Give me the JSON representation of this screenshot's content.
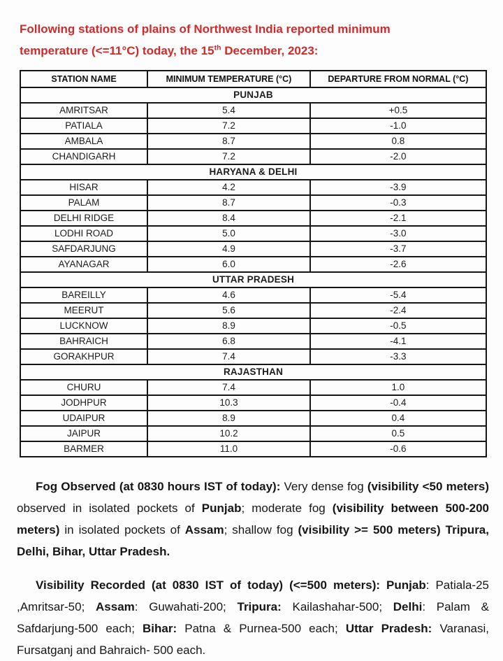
{
  "colors": {
    "heading_red": "#d02a2a",
    "section_blue": "#2e75b6",
    "highlight_red": "#c63434",
    "text_black": "#1a1a1a",
    "border_black": "#161616",
    "page_bg": "#fdfdfd"
  },
  "heading": {
    "line1": "Following stations of plains of Northwest India reported minimum",
    "line2_before_sup": "temperature (<=11°C) today, the 15",
    "sup": "th",
    "line2_after_sup": " December, 2023:"
  },
  "table": {
    "columns": [
      "STATION NAME",
      "MINIMUM TEMPERATURE (°C)",
      "DEPARTURE FROM NORMAL (°C)"
    ],
    "sections": [
      {
        "name": "PUNJAB",
        "rows": [
          {
            "station": "AMRITSAR",
            "min_temp": "5.4",
            "departure": "+0.5",
            "highlight": false
          },
          {
            "station": "PATIALA",
            "min_temp": "7.2",
            "departure": "-1.0",
            "highlight": false
          },
          {
            "station": "AMBALA",
            "min_temp": "8.7",
            "departure": "0.8",
            "highlight": false
          },
          {
            "station": "CHANDIGARH",
            "min_temp": "7.2",
            "departure": "-2.0",
            "highlight": false
          }
        ]
      },
      {
        "name": "HARYANA & DELHI",
        "rows": [
          {
            "station": "HISAR",
            "min_temp": "4.2",
            "departure": "-3.9",
            "highlight": true
          },
          {
            "station": "PALAM",
            "min_temp": "8.7",
            "departure": "-0.3",
            "highlight": false
          },
          {
            "station": "DELHI RIDGE",
            "min_temp": "8.4",
            "departure": "-2.1",
            "highlight": false
          },
          {
            "station": "LODHI ROAD",
            "min_temp": "5.0",
            "departure": "-3.0",
            "highlight": false
          },
          {
            "station": "SAFDARJUNG",
            "min_temp": "4.9",
            "departure": "-3.7",
            "highlight": false
          },
          {
            "station": "AYANAGAR",
            "min_temp": "6.0",
            "departure": "-2.6",
            "highlight": false
          }
        ]
      },
      {
        "name": "UTTAR PRADESH",
        "rows": [
          {
            "station": "BAREILLY",
            "min_temp": "4.6",
            "departure": "-5.4",
            "highlight": false
          },
          {
            "station": "MEERUT",
            "min_temp": "5.6",
            "departure": "-2.4",
            "highlight": false
          },
          {
            "station": "LUCKNOW",
            "min_temp": "8.9",
            "departure": "-0.5",
            "highlight": false
          },
          {
            "station": "BAHRAICH",
            "min_temp": "6.8",
            "departure": "-4.1",
            "highlight": false
          },
          {
            "station": "GORAKHPUR",
            "min_temp": "7.4",
            "departure": "-3.3",
            "highlight": false
          }
        ]
      },
      {
        "name": "RAJASTHAN",
        "rows": [
          {
            "station": "CHURU",
            "min_temp": "7.4",
            "departure": "1.0",
            "highlight": false
          },
          {
            "station": "JODHPUR",
            "min_temp": "10.3",
            "departure": "-0.4",
            "highlight": false
          },
          {
            "station": "UDAIPUR",
            "min_temp": "8.9",
            "departure": "0.4",
            "highlight": false
          },
          {
            "station": "JAIPUR",
            "min_temp": "10.2",
            "departure": "0.5",
            "highlight": false
          },
          {
            "station": "BARMER",
            "min_temp": "11.0",
            "departure": "-0.6",
            "highlight": false
          }
        ]
      }
    ]
  },
  "paragraphs": [
    {
      "id": "fog-observed",
      "segments": [
        {
          "text": "Fog Observed (at 0830 hours IST of today): ",
          "bold": true
        },
        {
          "text": "Very dense fog ",
          "bold": false
        },
        {
          "text": "(visibility <50 meters) ",
          "bold": true
        },
        {
          "text": "observed in isolated pockets of ",
          "bold": false
        },
        {
          "text": "Punjab",
          "bold": true
        },
        {
          "text": "; moderate fog ",
          "bold": false
        },
        {
          "text": "(visibility between 500-200 meters) ",
          "bold": true
        },
        {
          "text": "in isolated pockets of ",
          "bold": false
        },
        {
          "text": "Assam",
          "bold": true
        },
        {
          "text": "; shallow fog ",
          "bold": false
        },
        {
          "text": "(visibility >= 500 meters) ",
          "bold": true
        },
        {
          "text": "Tripura, Delhi, Bihar, Uttar Pradesh.",
          "bold": true
        }
      ]
    },
    {
      "id": "visibility-recorded",
      "segments": [
        {
          "text": "Visibility Recorded (at 0830 IST of today) (<=500 meters): Punjab",
          "bold": true
        },
        {
          "text": ": Patiala-25 ,Amritsar-50; ",
          "bold": false
        },
        {
          "text": "Assam",
          "bold": true
        },
        {
          "text": ": Guwahati-200; ",
          "bold": false
        },
        {
          "text": "Tripura:",
          "bold": true
        },
        {
          "text": " Kailashahar-500; ",
          "bold": false
        },
        {
          "text": "Delhi",
          "bold": true
        },
        {
          "text": ": Palam & Safdarjung-500 each; ",
          "bold": false
        },
        {
          "text": "Bihar:",
          "bold": true
        },
        {
          "text": " Patna & Purnea-500 each; ",
          "bold": false
        },
        {
          "text": "Uttar Pradesh:",
          "bold": true
        },
        {
          "text": " Varanasi, Fursatganj and Bahraich- 500 each.",
          "bold": false
        }
      ]
    }
  ]
}
